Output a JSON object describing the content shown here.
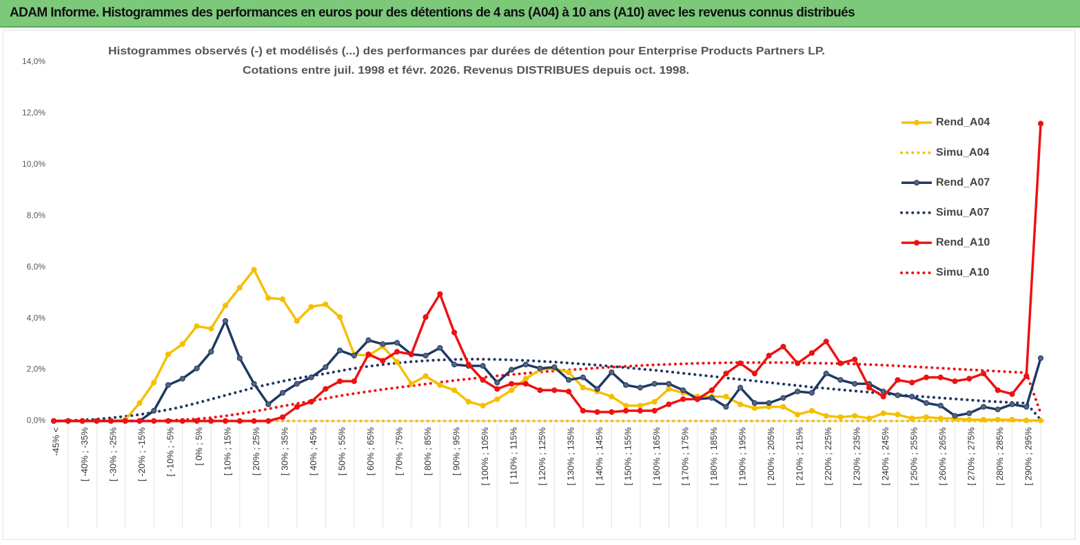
{
  "header": {
    "title": "ADAM Informe. Histogrammes des performances en euros pour des détentions de 4 ans (A04) à 10 ans (A10) avec les revenus connus distribués"
  },
  "chart_data": {
    "type": "line",
    "title": "Histogrammes observés (-) et modélisés (...) des performances par durées de détention pour Enterprise Products Partners LP.",
    "subtitle": "Cotations entre juil. 1998 et févr. 2026. Revenus DISTRIBUES depuis oct. 1998.",
    "categories": [
      "-45% <",
      null,
      "[ -40% ; -35%",
      null,
      "[ -30% ; -25%",
      null,
      "[ -20% ; -15%",
      null,
      "[ -10% ; -5%",
      null,
      "[ 0% ; 5%",
      null,
      "[ 10% ; 15%",
      null,
      "[ 20% ; 25%",
      null,
      "[ 30% ; 35%",
      null,
      "[ 40% ; 45%",
      null,
      "[ 50% ; 55%",
      null,
      "[ 60% ; 65%",
      null,
      "[ 70% ; 75%",
      null,
      "[ 80% ; 85%",
      null,
      "[ 90% ; 95%",
      null,
      "[ 100% ; 105%",
      null,
      "[ 110% ; 115%",
      null,
      "[ 120% ; 125%",
      null,
      "[ 130% ; 135%",
      null,
      "[ 140% ; 145%",
      null,
      "[ 150% ; 155%",
      null,
      "[ 160% ; 165%",
      null,
      "[ 170% ; 175%",
      null,
      "[ 180% ; 185%",
      null,
      "[ 190% ; 195%",
      null,
      "[ 200% ; 205%",
      null,
      "[ 210% ; 215%",
      null,
      "[ 220% ; 225%",
      null,
      "[ 230% ; 235%",
      null,
      "[ 240% ; 245%",
      null,
      "[ 250% ; 255%",
      null,
      "[ 260% ; 265%",
      null,
      "[ 270% ; 275%",
      null,
      "[ 280% ; 285%",
      null,
      "[ 290% ; 295%",
      null
    ],
    "ylim": [
      0,
      14
    ],
    "yticks": [
      {
        "value": 0,
        "label": "0,0%"
      },
      {
        "value": 2,
        "label": "2,0%"
      },
      {
        "value": 4,
        "label": "4,0%"
      },
      {
        "value": 6,
        "label": "6,0%"
      },
      {
        "value": 8,
        "label": "8,0%"
      },
      {
        "value": 10,
        "label": "10,0%"
      },
      {
        "value": 12,
        "label": "12,0%"
      },
      {
        "value": 14,
        "label": "14,0%"
      }
    ],
    "grid": false,
    "legend": "upper right",
    "series": [
      {
        "name": "Rend_A04",
        "color": "#f5bf00",
        "style": "solid",
        "marker": true,
        "values": [
          0,
          0,
          0,
          0,
          0,
          0.05,
          0.7,
          1.5,
          2.6,
          3.0,
          3.7,
          3.6,
          4.5,
          5.2,
          5.9,
          4.8,
          4.75,
          3.9,
          4.45,
          4.55,
          4.05,
          2.6,
          2.55,
          2.9,
          2.3,
          1.45,
          1.75,
          1.4,
          1.2,
          0.75,
          0.6,
          0.85,
          1.2,
          1.65,
          2.0,
          2.05,
          1.9,
          1.3,
          1.15,
          0.95,
          0.6,
          0.6,
          0.75,
          1.25,
          1.1,
          0.95,
          0.95,
          0.95,
          0.65,
          0.5,
          0.55,
          0.55,
          0.25,
          0.4,
          0.2,
          0.15,
          0.2,
          0.1,
          0.3,
          0.25,
          0.1,
          0.15,
          0.1,
          0.1,
          0.05,
          0.05,
          0.05,
          0.05,
          0.02,
          0.02
        ]
      },
      {
        "name": "Simu_A04",
        "color": "#f5bf00",
        "style": "dotted",
        "marker": false,
        "values": [
          0,
          0,
          0,
          0,
          0,
          0,
          0,
          0,
          0,
          0,
          0,
          0,
          0,
          0,
          0,
          0,
          0,
          0,
          0,
          0,
          0,
          0,
          0,
          0,
          0,
          0,
          0,
          0,
          0,
          0,
          0,
          0,
          0,
          0,
          0,
          0,
          0,
          0,
          0,
          0,
          0,
          0,
          0,
          0,
          0,
          0,
          0,
          0,
          0,
          0,
          0,
          0,
          0,
          0,
          0,
          0,
          0,
          0,
          0,
          0,
          0,
          0,
          0,
          0,
          0,
          0,
          0,
          0,
          0,
          0
        ]
      },
      {
        "name": "Rend_A07",
        "color": "#1f3864",
        "style": "solid",
        "marker": true,
        "values": [
          0,
          0,
          0,
          0,
          0,
          0,
          0,
          0.4,
          1.4,
          1.65,
          2.05,
          2.7,
          3.9,
          2.45,
          1.45,
          0.65,
          1.1,
          1.45,
          1.7,
          2.1,
          2.75,
          2.55,
          3.15,
          3.0,
          3.05,
          2.6,
          2.55,
          2.85,
          2.2,
          2.15,
          2.15,
          1.5,
          2.0,
          2.2,
          2.05,
          2.1,
          1.6,
          1.7,
          1.25,
          1.9,
          1.4,
          1.3,
          1.45,
          1.45,
          1.2,
          0.85,
          0.9,
          0.55,
          1.3,
          0.7,
          0.7,
          0.9,
          1.15,
          1.1,
          1.85,
          1.6,
          1.45,
          1.45,
          1.15,
          1.0,
          0.95,
          0.7,
          0.6,
          0.2,
          0.3,
          0.55,
          0.45,
          0.65,
          0.55,
          2.45
        ]
      },
      {
        "name": "Simu_A07",
        "color": "#1f3864",
        "style": "dotted",
        "marker": false,
        "values": [
          0,
          0.02,
          0.04,
          0.07,
          0.12,
          0.18,
          0.25,
          0.34,
          0.44,
          0.56,
          0.7,
          0.85,
          1.0,
          1.15,
          1.3,
          1.43,
          1.55,
          1.66,
          1.76,
          1.85,
          1.95,
          2.05,
          2.13,
          2.2,
          2.26,
          2.31,
          2.35,
          2.38,
          2.4,
          2.41,
          2.41,
          2.4,
          2.38,
          2.36,
          2.33,
          2.3,
          2.26,
          2.22,
          2.18,
          2.13,
          2.08,
          2.03,
          1.98,
          1.92,
          1.86,
          1.8,
          1.74,
          1.68,
          1.62,
          1.56,
          1.5,
          1.44,
          1.38,
          1.32,
          1.27,
          1.22,
          1.17,
          1.12,
          1.07,
          1.02,
          0.98,
          0.94,
          0.9,
          0.86,
          0.82,
          0.78,
          0.75,
          0.72,
          0.69,
          0.05
        ]
      },
      {
        "name": "Rend_A10",
        "color": "#ee1111",
        "style": "solid",
        "marker": true,
        "values": [
          0,
          0,
          0,
          0,
          0,
          0,
          0,
          0,
          0,
          0,
          0,
          0,
          0,
          0,
          0,
          0,
          0.15,
          0.55,
          0.75,
          1.25,
          1.55,
          1.55,
          2.6,
          2.35,
          2.7,
          2.6,
          4.05,
          4.95,
          3.45,
          2.2,
          1.6,
          1.25,
          1.45,
          1.45,
          1.2,
          1.2,
          1.15,
          0.4,
          0.35,
          0.35,
          0.4,
          0.4,
          0.4,
          0.65,
          0.85,
          0.85,
          1.2,
          1.85,
          2.25,
          1.85,
          2.55,
          2.9,
          2.25,
          2.65,
          3.1,
          2.25,
          2.4,
          1.3,
          0.95,
          1.6,
          1.5,
          1.7,
          1.7,
          1.55,
          1.65,
          1.85,
          1.2,
          1.05,
          1.75,
          11.6
        ]
      },
      {
        "name": "Simu_A10",
        "color": "#ee1111",
        "style": "dotted",
        "marker": false,
        "values": [
          0,
          0,
          0,
          0,
          0,
          0,
          0,
          0,
          0.02,
          0.05,
          0.08,
          0.13,
          0.2,
          0.28,
          0.37,
          0.47,
          0.58,
          0.68,
          0.78,
          0.88,
          0.98,
          1.07,
          1.15,
          1.23,
          1.3,
          1.37,
          1.44,
          1.51,
          1.58,
          1.64,
          1.7,
          1.76,
          1.81,
          1.86,
          1.91,
          1.95,
          1.99,
          2.03,
          2.07,
          2.1,
          2.13,
          2.16,
          2.19,
          2.21,
          2.23,
          2.25,
          2.26,
          2.27,
          2.28,
          2.28,
          2.28,
          2.28,
          2.27,
          2.26,
          2.25,
          2.24,
          2.22,
          2.2,
          2.18,
          2.15,
          2.12,
          2.09,
          2.06,
          2.03,
          2.0,
          1.97,
          1.94,
          1.91,
          1.88,
          0.3
        ]
      }
    ]
  }
}
